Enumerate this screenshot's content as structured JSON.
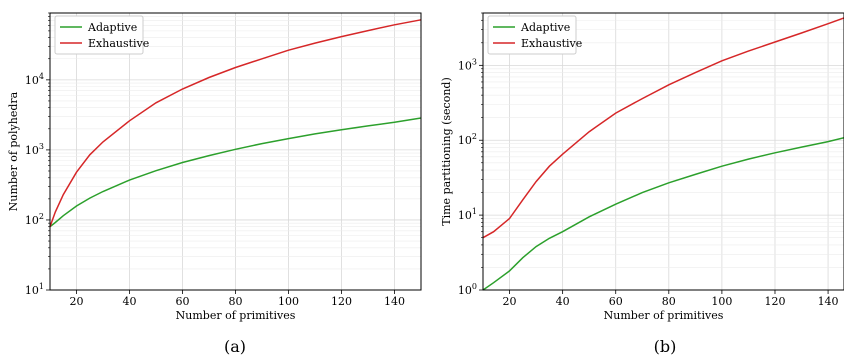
{
  "chart_data": [
    {
      "type": "line",
      "subfigure_label": "(a)",
      "title": "",
      "xlabel": "Number of primitives",
      "ylabel": "Number of polyhedra",
      "xscale": "linear",
      "yscale": "log",
      "xlim": [
        10,
        150
      ],
      "ylim": [
        10,
        90000
      ],
      "xticks": [
        20,
        40,
        60,
        80,
        100,
        120,
        140
      ],
      "yticks": [
        {
          "value": 10,
          "base": "10",
          "exp": "1"
        },
        {
          "value": 100,
          "base": "10",
          "exp": "2"
        },
        {
          "value": 1000,
          "base": "10",
          "exp": "3"
        },
        {
          "value": 10000,
          "base": "10",
          "exp": "4"
        }
      ],
      "grid": true,
      "legend_position": "top-left",
      "x": [
        10,
        12,
        15,
        20,
        25,
        30,
        40,
        50,
        60,
        70,
        80,
        90,
        100,
        110,
        120,
        130,
        140,
        150
      ],
      "series": [
        {
          "name": "Adaptive",
          "color": "#2ca02c",
          "values": [
            80,
            92,
            115,
            158,
            205,
            255,
            370,
            505,
            660,
            830,
            1020,
            1230,
            1450,
            1690,
            1940,
            2200,
            2480,
            2850
          ]
        },
        {
          "name": "Exhaustive",
          "color": "#d62728",
          "values": [
            80,
            130,
            230,
            480,
            850,
            1300,
            2600,
            4700,
            7400,
            10800,
            15000,
            20000,
            26500,
            33500,
            41500,
            50500,
            61000,
            72000
          ]
        }
      ]
    },
    {
      "type": "line",
      "subfigure_label": "(b)",
      "title": "",
      "xlabel": "Number of primitives",
      "ylabel": "Time partitioning (second)",
      "xscale": "linear",
      "yscale": "log",
      "xlim": [
        10,
        146
      ],
      "ylim": [
        1,
        5000
      ],
      "xticks": [
        20,
        40,
        60,
        80,
        100,
        120,
        140
      ],
      "yticks": [
        {
          "value": 1,
          "base": "10",
          "exp": "0"
        },
        {
          "value": 10,
          "base": "10",
          "exp": "1"
        },
        {
          "value": 100,
          "base": "10",
          "exp": "2"
        },
        {
          "value": 1000,
          "base": "10",
          "exp": "3"
        }
      ],
      "grid": true,
      "legend_position": "top-left",
      "x": [
        10,
        14,
        20,
        25,
        30,
        35,
        40,
        50,
        60,
        70,
        80,
        90,
        100,
        110,
        120,
        130,
        140,
        146
      ],
      "series": [
        {
          "name": "Adaptive",
          "color": "#2ca02c",
          "values": [
            1.0,
            1.25,
            1.8,
            2.7,
            3.8,
            4.9,
            6.0,
            9.5,
            14,
            20,
            27,
            35,
            45,
            56,
            68,
            81,
            96,
            108
          ]
        },
        {
          "name": "Exhaustive",
          "color": "#d62728",
          "values": [
            5.0,
            6.0,
            9.0,
            16,
            28,
            45,
            65,
            130,
            230,
            360,
            550,
            800,
            1150,
            1550,
            2050,
            2700,
            3600,
            4300
          ]
        }
      ]
    }
  ]
}
